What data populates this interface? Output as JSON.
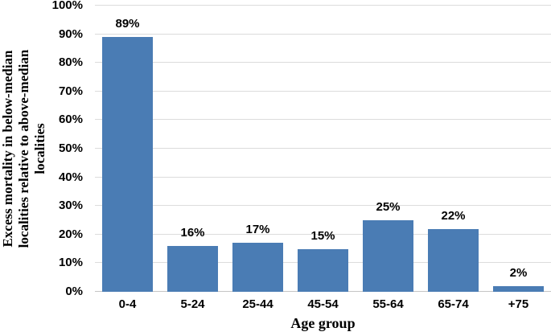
{
  "chart_data": {
    "type": "bar",
    "title": "",
    "categories": [
      "0-4",
      "5-24",
      "25-44",
      "45-54",
      "55-64",
      "65-74",
      "+75"
    ],
    "values": [
      89,
      16,
      17,
      15,
      25,
      22,
      2
    ],
    "data_labels": [
      "89%",
      "16%",
      "17%",
      "15%",
      "25%",
      "22%",
      "2%"
    ],
    "xlabel": "Age group",
    "ylabel": "Excess mortality in below-median localities relative to above-median localities",
    "ylabel_lines": [
      "Excess mortality in below-median",
      "localities relative to above-median",
      "localities"
    ],
    "ylim": [
      0,
      100
    ],
    "yticks": [
      0,
      10,
      20,
      30,
      40,
      50,
      60,
      70,
      80,
      90,
      100
    ],
    "ytick_labels": [
      "0%",
      "10%",
      "20%",
      "30%",
      "40%",
      "50%",
      "60%",
      "70%",
      "80%",
      "90%",
      "100%"
    ],
    "grid": true,
    "legend": false,
    "legend_position": "none",
    "colors": {
      "bar": "#4A7CB4",
      "gridline": "#DCDCDC",
      "axis_line": "#C4C4C4",
      "text": "#000000"
    }
  }
}
